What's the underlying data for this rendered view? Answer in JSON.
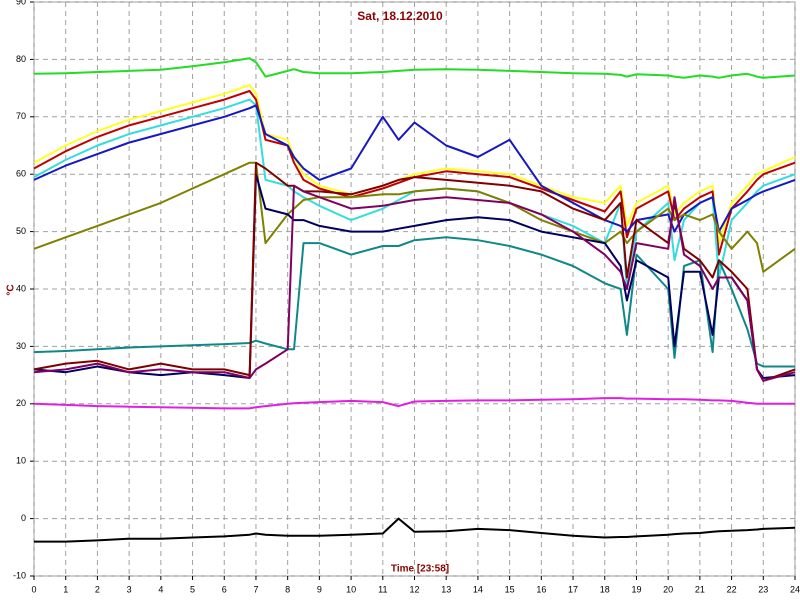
{
  "chart_data": {
    "type": "line",
    "title": "Sat, 18.12.2010",
    "y_label": "°C",
    "x_label": "Time [23:58]",
    "x": [
      0,
      1,
      2,
      3,
      4,
      5,
      6,
      6.8,
      7,
      7.3,
      8,
      8.2,
      8.5,
      9,
      10,
      11,
      11.5,
      12,
      13,
      14,
      15,
      16,
      17,
      18,
      18.5,
      18.7,
      19,
      20,
      20.2,
      20.5,
      21,
      21.4,
      21.6,
      22,
      22.5,
      22.8,
      23,
      24
    ],
    "series": [
      {
        "color": "#22dd22",
        "values": [
          77.5,
          77.6,
          77.8,
          78,
          78.2,
          78.8,
          79.5,
          80.2,
          79.5,
          77,
          78,
          78.3,
          77.8,
          77.6,
          77.6,
          77.8,
          78,
          78.2,
          78.3,
          78.2,
          78,
          77.8,
          77.6,
          77.5,
          77.3,
          77,
          77.4,
          77.2,
          77,
          76.8,
          77.2,
          77,
          76.8,
          77.2,
          77.5,
          77,
          76.8,
          77.2
        ]
      },
      {
        "color": "#ffff22",
        "values": [
          62,
          65,
          67.5,
          69.5,
          71,
          72.5,
          74,
          75.5,
          74,
          67,
          66,
          63,
          60,
          58,
          56.5,
          58,
          59,
          60,
          61,
          60.5,
          60,
          58,
          56,
          55,
          58,
          51,
          55,
          58,
          53,
          55,
          57,
          58,
          48,
          55,
          58,
          60,
          60.5,
          63
        ]
      },
      {
        "color": "#c00000",
        "values": [
          61,
          64,
          66.5,
          68.5,
          70,
          71.5,
          73,
          74.5,
          73,
          66,
          65,
          62,
          59,
          57.5,
          56,
          57.5,
          58.5,
          59.5,
          60.5,
          60,
          59.5,
          57.5,
          55.5,
          53.5,
          57,
          49,
          54,
          57,
          52,
          54,
          56,
          57,
          46,
          54,
          57,
          59,
          60,
          62
        ]
      },
      {
        "color": "#33dddd",
        "values": [
          59.5,
          62.5,
          65,
          67,
          68.5,
          70,
          71.5,
          73,
          72,
          59,
          58,
          57,
          56,
          54.5,
          52,
          54,
          55.5,
          57,
          57.5,
          57,
          55,
          53,
          51,
          48,
          55,
          40,
          50,
          55,
          45,
          52,
          55,
          56,
          42,
          52,
          55,
          57,
          58,
          60
        ]
      },
      {
        "color": "#1818c0",
        "values": [
          59,
          61.5,
          63.5,
          65.5,
          67,
          68.5,
          70,
          71.5,
          72,
          67,
          65,
          63,
          61,
          59,
          61,
          70,
          66,
          69,
          65,
          63,
          66,
          58,
          55,
          52,
          51,
          50,
          52,
          53,
          50,
          53,
          55,
          56,
          50,
          54,
          55.5,
          56.5,
          57,
          59
        ]
      },
      {
        "color": "#808000",
        "values": [
          47,
          49,
          51,
          53,
          55,
          57.5,
          60,
          62,
          62,
          48,
          53,
          54,
          55.5,
          56,
          56,
          56.5,
          56.5,
          57,
          57.5,
          57,
          55,
          52,
          50,
          48,
          50,
          48,
          50,
          54,
          52,
          53,
          52,
          53,
          50,
          47,
          50,
          48,
          43,
          47
        ]
      },
      {
        "color": "#108888",
        "values": [
          29,
          29.2,
          29.5,
          29.8,
          30,
          30.2,
          30.4,
          30.6,
          31,
          30.5,
          29.5,
          29.5,
          48,
          48,
          46,
          47.5,
          47.5,
          48.5,
          49,
          48.5,
          47.5,
          46,
          44,
          41,
          40,
          32,
          46,
          40,
          28,
          44,
          45,
          29,
          45,
          40,
          33,
          27,
          26.5,
          26.5
        ]
      },
      {
        "color": "#000060",
        "values": [
          26,
          25.5,
          26.5,
          25.5,
          25,
          25.5,
          25,
          24.5,
          60,
          54,
          53,
          52,
          52,
          51,
          50,
          50,
          50.5,
          51,
          52,
          52.5,
          52,
          50,
          49,
          48,
          44,
          38,
          45,
          42,
          30,
          43,
          43,
          32,
          42,
          42,
          38,
          26,
          24.5,
          25
        ]
      },
      {
        "color": "#800000",
        "values": [
          26,
          27,
          27.5,
          26,
          27,
          26,
          26,
          25,
          62,
          61,
          58,
          58,
          57,
          57,
          56.5,
          58,
          59,
          59.5,
          59,
          58.5,
          58,
          57,
          54,
          52,
          55,
          42,
          52,
          48,
          55,
          47,
          45,
          42,
          45,
          43,
          40,
          26,
          24,
          26
        ]
      },
      {
        "color": "#800060",
        "values": [
          25.5,
          26,
          27,
          25.5,
          26,
          25.5,
          25.5,
          24.5,
          26,
          27,
          29.5,
          58,
          57,
          56,
          54,
          54.5,
          55,
          55.5,
          56,
          55.5,
          55,
          53,
          50,
          46,
          43,
          40,
          48,
          47,
          56,
          46,
          44,
          40,
          42,
          42,
          38,
          26,
          24,
          25.5
        ]
      },
      {
        "color": "#e020e0",
        "values": [
          20,
          19.8,
          19.6,
          19.5,
          19.4,
          19.3,
          19.2,
          19.2,
          19.4,
          19.6,
          20,
          20.1,
          20.2,
          20.3,
          20.5,
          20.3,
          19.6,
          20.4,
          20.5,
          20.6,
          20.6,
          20.7,
          20.8,
          21,
          21,
          20.9,
          20.9,
          20.8,
          20.8,
          20.8,
          20.7,
          20.6,
          20.6,
          20.5,
          20.2,
          20,
          20,
          20
        ]
      },
      {
        "color": "#000000",
        "values": [
          -4,
          -4,
          -3.8,
          -3.5,
          -3.5,
          -3.3,
          -3.1,
          -2.8,
          -2.6,
          -2.8,
          -3,
          -3,
          -3,
          -3,
          -2.8,
          -2.6,
          0,
          -2.3,
          -2.2,
          -1.8,
          -2,
          -2.5,
          -3,
          -3.3,
          -3.2,
          -3.2,
          -3.1,
          -2.8,
          -2.7,
          -2.6,
          -2.5,
          -2.3,
          -2.2,
          -2.1,
          -2,
          -1.9,
          -1.8,
          -1.6
        ]
      }
    ],
    "xlim": [
      0,
      24
    ],
    "xticks": [
      0,
      1,
      2,
      3,
      4,
      5,
      6,
      7,
      8,
      9,
      10,
      11,
      12,
      13,
      14,
      15,
      16,
      17,
      18,
      19,
      20,
      21,
      22,
      23,
      24
    ],
    "ylim": [
      -10,
      90
    ],
    "yticks": [
      -10,
      0,
      10,
      20,
      30,
      40,
      50,
      60,
      70,
      80,
      90
    ],
    "grid": true
  }
}
